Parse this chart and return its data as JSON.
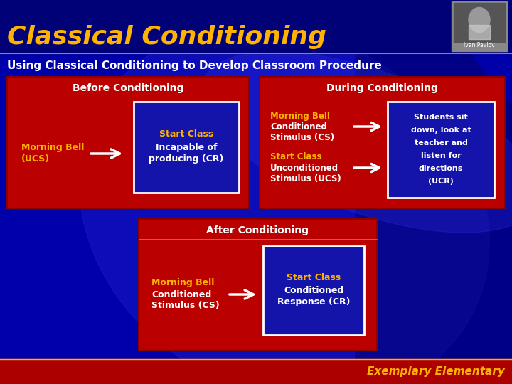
{
  "title": "Classical Conditioning",
  "subtitle": "Using Classical Conditioning to Develop Classroom Procedure",
  "title_color": "#FFB300",
  "subtitle_color": "#FFFFFF",
  "bg_color": "#0000AA",
  "red_box_color": "#BB0000",
  "blue_box_color": "#0000BB",
  "inner_blue_color": "#1414AA",
  "orange_text_color": "#FFB300",
  "white_text_color": "#FFFFFF",
  "footer_text": "Exemplary Elementary",
  "footer_color": "#FFB300",
  "pavlov_label": "Ivan Pavlov",
  "before_title": "Before Conditioning",
  "before_left_line1": "Morning Bell",
  "before_left_line2": "(UCS)",
  "before_right_line1": "Start Class",
  "before_right_line2": "Incapable of",
  "before_right_line3": "producing (CR)",
  "during_title": "During Conditioning",
  "during_left_top_line1": "Morning Bell",
  "during_left_top_line2": "Conditioned",
  "during_left_top_line3": "Stimulus (CS)",
  "during_left_bot_line1": "Start Class",
  "during_left_bot_line2": "Unconditioned",
  "during_left_bot_line3": "Stimulus (UCS)",
  "during_right_line1": "Students sit",
  "during_right_line2": "down, look at",
  "during_right_line3": "teacher and",
  "during_right_line4": "listen for",
  "during_right_line5": "directions",
  "during_right_line6": "(UCR)",
  "after_title": "After Conditioning",
  "after_left_line1": "Morning Bell",
  "after_left_line2": "Conditioned",
  "after_left_line3": "Stimulus (CS)",
  "after_right_line1": "Start Class",
  "after_right_line2": "Conditioned",
  "after_right_line3": "Response (CR)"
}
